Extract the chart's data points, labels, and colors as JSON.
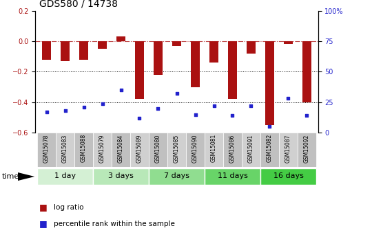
{
  "title": "GDS580 / 14738",
  "samples": [
    "GSM15078",
    "GSM15083",
    "GSM15088",
    "GSM15079",
    "GSM15084",
    "GSM15089",
    "GSM15080",
    "GSM15085",
    "GSM15090",
    "GSM15081",
    "GSM15086",
    "GSM15091",
    "GSM15082",
    "GSM15087",
    "GSM15092"
  ],
  "log_ratio": [
    -0.12,
    -0.13,
    -0.12,
    -0.05,
    0.03,
    -0.38,
    -0.22,
    -0.03,
    -0.3,
    -0.14,
    -0.38,
    -0.08,
    -0.55,
    -0.02,
    -0.4
  ],
  "percentile_rank": [
    17,
    18,
    21,
    24,
    35,
    12,
    20,
    32,
    15,
    22,
    14,
    22,
    5,
    28,
    14
  ],
  "groups": [
    {
      "label": "1 day",
      "color": "#d4f0d4",
      "indices": [
        0,
        1,
        2
      ]
    },
    {
      "label": "3 days",
      "color": "#b8e8b8",
      "indices": [
        3,
        4,
        5
      ]
    },
    {
      "label": "7 days",
      "color": "#90dd90",
      "indices": [
        6,
        7,
        8
      ]
    },
    {
      "label": "11 days",
      "color": "#68d468",
      "indices": [
        9,
        10,
        11
      ]
    },
    {
      "label": "16 days",
      "color": "#44cc44",
      "indices": [
        12,
        13,
        14
      ]
    }
  ],
  "bar_color": "#AA1111",
  "dot_color": "#2222CC",
  "ylim_left": [
    -0.6,
    0.2
  ],
  "ylim_right": [
    0,
    100
  ],
  "yticks_left": [
    -0.6,
    -0.4,
    -0.2,
    0.0,
    0.2
  ],
  "yticks_right": [
    0,
    25,
    50,
    75,
    100
  ],
  "ytick_labels_right": [
    "0",
    "25",
    "50",
    "75",
    "100%"
  ],
  "hline_dashed": 0.0,
  "hlines_dotted": [
    -0.2,
    -0.4
  ],
  "legend_log_ratio": "log ratio",
  "legend_percentile": "percentile rank within the sample",
  "time_label": "time",
  "bar_width": 0.45,
  "sample_box_colors": [
    "#c0c0c0",
    "#d0d0d0"
  ],
  "title_fontsize": 10,
  "tick_fontsize": 7,
  "sample_fontsize": 5.5,
  "group_fontsize": 8,
  "legend_fontsize": 7.5
}
